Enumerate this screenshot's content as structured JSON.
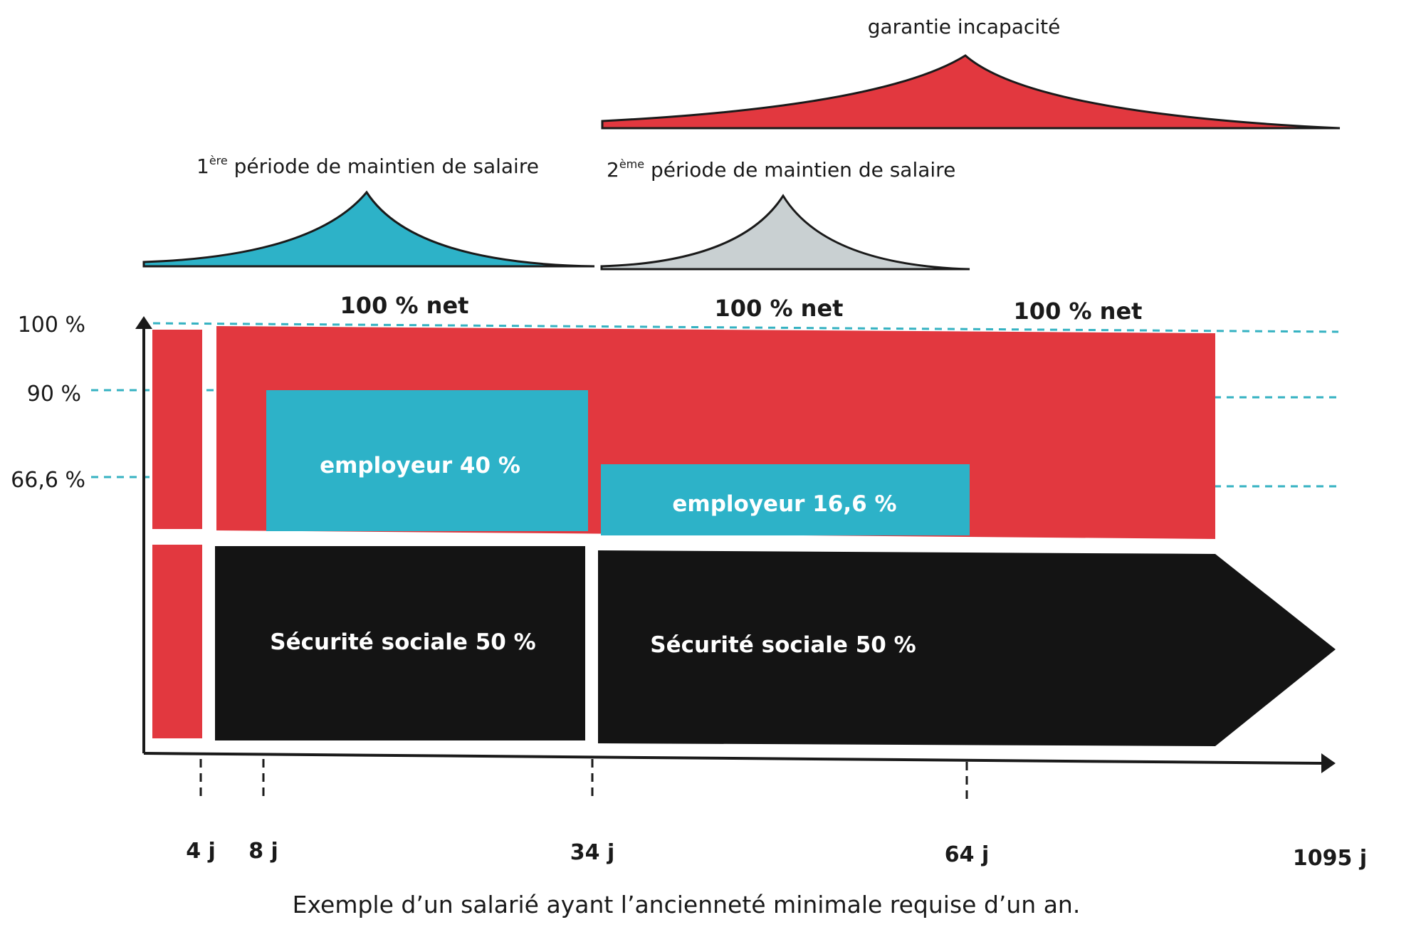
{
  "curves": {
    "garantie": "garantie incapacité",
    "periode1": {
      "ordinal": "1",
      "suffix": "ère",
      "text": " période de maintien de salaire"
    },
    "periode2": {
      "ordinal": "2",
      "suffix": "ème",
      "text": " période de maintien de salaire"
    }
  },
  "net_labels": [
    "100 % net",
    "100 % net",
    "100 % net"
  ],
  "y_axis": [
    "100 %",
    "90 %",
    "66,6 %"
  ],
  "bars": {
    "employeur_1": "employeur 40 %",
    "employeur_2": "employeur 16,6 %",
    "secu_1": "Sécurité sociale 50 %",
    "secu_2": "Sécurité sociale 50 %"
  },
  "x_axis": [
    "4 j",
    "8 j",
    "34 j",
    "64 j",
    "1095 j"
  ],
  "caption": "Exemple d’un salarié ayant l’ancienneté minimale requise d’un an.",
  "colors": {
    "red": "#e2383f",
    "teal": "#2db2c8",
    "grey": "#c9d0d2",
    "black": "#141414",
    "dotted": "#35b2c2"
  }
}
